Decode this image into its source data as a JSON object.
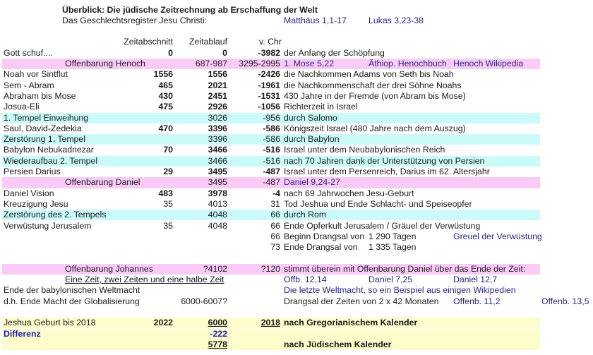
{
  "colors": {
    "pink": "#fbcbf7",
    "cyan": "#cbfafb",
    "yellow": "#fdfccb",
    "link": "#27277f",
    "differenz": "#1c1cc0"
  },
  "rows": [
    {
      "cells": [
        {
          "c": "T",
          "t": "Überblick: Die jüdische Zeitrechnung ab Erschaffung der Welt",
          "s": "b"
        }
      ]
    },
    {
      "cells": [
        {
          "c": "T",
          "t": "Das Geschlechtsregister Jesu Christi:"
        },
        {
          "c": "E",
          "t": "Matthäus 1,1-17",
          "s": "blue link"
        },
        {
          "c": "F",
          "t": "Lukas 3,23-38",
          "s": "blue link"
        }
      ]
    },
    {
      "cells": []
    },
    {
      "cells": [
        {
          "c": "B",
          "t": "Zeitabschnitt"
        },
        {
          "c": "C",
          "t": "Zeitablauf"
        },
        {
          "c": "DL",
          "t": "v. Chr"
        }
      ]
    },
    {
      "cells": [
        {
          "c": "A",
          "t": "Gott schuf...."
        },
        {
          "c": "B",
          "t": "0",
          "s": "b"
        },
        {
          "c": "C",
          "t": "0",
          "s": "b"
        },
        {
          "c": "D",
          "t": "-3982",
          "s": "b"
        },
        {
          "c": "E",
          "t": "der Anfang der Schöpfung"
        }
      ]
    },
    {
      "bg": "pink",
      "cells": [
        {
          "c": "AC",
          "t": "Offenbarung Henoch"
        },
        {
          "c": "C",
          "t": "687-987"
        },
        {
          "c": "D",
          "t": "3295-2995"
        },
        {
          "c": "E",
          "t": "1. Mose 5,22",
          "s": "blue link"
        },
        {
          "c": "F",
          "t": "Äthiop. Henochbuch",
          "s": "blue link"
        },
        {
          "c": "G",
          "t": "Henoch Wikipedia",
          "s": "blue link"
        }
      ]
    },
    {
      "cells": [
        {
          "c": "A",
          "t": "Noah vor Sintflut"
        },
        {
          "c": "B",
          "t": "1556",
          "s": "b"
        },
        {
          "c": "C",
          "t": "1556",
          "s": "b"
        },
        {
          "c": "D",
          "t": "-2426",
          "s": "b"
        },
        {
          "c": "E",
          "t": "die Nachkommen Adams von Seth bis Noah"
        }
      ]
    },
    {
      "cells": [
        {
          "c": "A",
          "t": "Sem - Abram"
        },
        {
          "c": "B",
          "t": "465",
          "s": "b"
        },
        {
          "c": "C",
          "t": "2021",
          "s": "b"
        },
        {
          "c": "D",
          "t": "-1961",
          "s": "b"
        },
        {
          "c": "E",
          "t": "die Nachkommenschaft der drei Söhne Noahs"
        }
      ]
    },
    {
      "cells": [
        {
          "c": "A",
          "t": "Abraham bis Mose"
        },
        {
          "c": "B",
          "t": "430",
          "s": "b"
        },
        {
          "c": "C",
          "t": "2451",
          "s": "b"
        },
        {
          "c": "D",
          "t": "-1531",
          "s": "b"
        },
        {
          "c": "E",
          "t": "430 Jahre in der Fremde (von Abram bis Mose)"
        }
      ]
    },
    {
      "cells": [
        {
          "c": "A",
          "t": "Josua-Eli"
        },
        {
          "c": "B",
          "t": "475",
          "s": "b"
        },
        {
          "c": "C",
          "t": "2926",
          "s": "b"
        },
        {
          "c": "D",
          "t": "-1056",
          "s": "b"
        },
        {
          "c": "E",
          "t": "Richterzeit in Israel"
        }
      ]
    },
    {
      "bg": "cyan",
      "cells": [
        {
          "c": "A",
          "t": "1. Tempel Einweihung"
        },
        {
          "c": "C",
          "t": "3026"
        },
        {
          "c": "D",
          "t": "-956"
        },
        {
          "c": "E",
          "t": "durch Salomo"
        }
      ]
    },
    {
      "cells": [
        {
          "c": "A",
          "t": "Saul, David-Zedekia"
        },
        {
          "c": "B",
          "t": "470",
          "s": "b"
        },
        {
          "c": "C",
          "t": "3396",
          "s": "b"
        },
        {
          "c": "D",
          "t": "-586",
          "s": "b"
        },
        {
          "c": "E",
          "t": "Königszeit Israel (480 Jahre nach dem Auszug)"
        }
      ]
    },
    {
      "bg": "cyan",
      "cells": [
        {
          "c": "A",
          "t": "Zerstörung 1. Tempel"
        },
        {
          "c": "C",
          "t": "3396"
        },
        {
          "c": "D",
          "t": "-586"
        },
        {
          "c": "E",
          "t": "durch Babylon"
        }
      ]
    },
    {
      "cells": [
        {
          "c": "A",
          "t": "Babylon Nebukadnezar"
        },
        {
          "c": "B",
          "t": "70",
          "s": "b"
        },
        {
          "c": "C",
          "t": "3466",
          "s": "b"
        },
        {
          "c": "D",
          "t": "-516",
          "s": "b"
        },
        {
          "c": "E",
          "t": "Israel unter dem Neubabylonischen Reich"
        }
      ]
    },
    {
      "bg": "cyan",
      "cells": [
        {
          "c": "A",
          "t": "Wiederaufbau 2. Tempel"
        },
        {
          "c": "C",
          "t": "3466"
        },
        {
          "c": "D",
          "t": "-516"
        },
        {
          "c": "E",
          "t": "nach 70 Jahren dank der Unterstützung von Persien"
        }
      ]
    },
    {
      "cells": [
        {
          "c": "A",
          "t": "Persien Darius"
        },
        {
          "c": "B",
          "t": "29",
          "s": "b"
        },
        {
          "c": "C",
          "t": "3495",
          "s": "b"
        },
        {
          "c": "D",
          "t": "-487",
          "s": "b"
        },
        {
          "c": "E",
          "t": "Israel unter dem Persenreich, Darius im 62. Altersjahr"
        }
      ]
    },
    {
      "bg": "pink",
      "cells": [
        {
          "c": "AC",
          "t": "Offenbarung Daniel"
        },
        {
          "c": "C",
          "t": "3495"
        },
        {
          "c": "D",
          "t": "-487"
        },
        {
          "c": "E",
          "t": "Daniel 9,24-27",
          "s": "blue link"
        }
      ]
    },
    {
      "cells": [
        {
          "c": "A",
          "t": "Daniel Vision"
        },
        {
          "c": "B",
          "t": "483",
          "s": "b"
        },
        {
          "c": "C",
          "t": "3978",
          "s": "b"
        },
        {
          "c": "D",
          "t": "-4",
          "s": "b"
        },
        {
          "c": "E",
          "t": "nach 69 Jahrwochen Jesu-Geburt"
        }
      ]
    },
    {
      "cells": [
        {
          "c": "A",
          "t": "Kreuzigung Jesu"
        },
        {
          "c": "B",
          "t": "35"
        },
        {
          "c": "C",
          "t": "4013"
        },
        {
          "c": "D",
          "t": "31"
        },
        {
          "c": "E",
          "t": "Tod Jeshua und Ende Schlacht- und Speiseopfer"
        }
      ]
    },
    {
      "bg": "cyan",
      "cells": [
        {
          "c": "A",
          "t": "Zerstörung des  2. Tempels"
        },
        {
          "c": "C",
          "t": "4048"
        },
        {
          "c": "D",
          "t": "66"
        },
        {
          "c": "E",
          "t": "durch Rom"
        }
      ]
    },
    {
      "cells": [
        {
          "c": "A",
          "t": "Verwüstung Jerusalem"
        },
        {
          "c": "B",
          "t": "35"
        },
        {
          "c": "C",
          "t": "4048"
        },
        {
          "c": "D",
          "t": "66"
        },
        {
          "c": "E",
          "t": "Ende Opferkult Jerusalem / Gräuel der Verwüstung"
        }
      ]
    },
    {
      "cells": [
        {
          "c": "D",
          "t": "66"
        },
        {
          "c": "E",
          "t": "Beginn Drangsal von"
        },
        {
          "c": "F",
          "t": "1 290 Tagen"
        },
        {
          "c": "G",
          "t": "Greuel der Verwüstung",
          "s": "blue link"
        }
      ]
    },
    {
      "cells": [
        {
          "c": "D",
          "t": "73"
        },
        {
          "c": "E",
          "t": "Ende Drangsal von"
        },
        {
          "c": "F",
          "t": "1 335 Tagen"
        }
      ]
    },
    {
      "cells": []
    },
    {
      "bg": "pink",
      "cells": [
        {
          "c": "AC",
          "t": "Offenbarung Johannes"
        },
        {
          "c": "C",
          "t": "?4102"
        },
        {
          "c": "D",
          "t": "?120"
        },
        {
          "c": "E",
          "t": "stimmt überein mit Offenbarung Daniel über das Ende der Zeit:"
        }
      ]
    },
    {
      "cells": [
        {
          "c": "AC",
          "t": "Eine Zeit, zwei Zeiten und eine halbe Zeit",
          "s": "u"
        },
        {
          "c": "E",
          "t": "Offb. 12,14",
          "s": "blue link"
        },
        {
          "c": "F",
          "t": "Daniel 7,25",
          "s": "blue link"
        },
        {
          "c": "G",
          "t": "Daniel 12,7",
          "s": "blue link"
        }
      ]
    },
    {
      "cells": [
        {
          "c": "A",
          "t": "Ende der babylonischen Weltmacht"
        },
        {
          "c": "E",
          "t": "Die letzte Weltmacht, so ein Beispiel aus einigen Wikipedien",
          "s": "blue link"
        }
      ]
    },
    {
      "cells": [
        {
          "c": "A",
          "t": "d.h. Ende Macht der Globalisierung"
        },
        {
          "c": "C",
          "t": "6000-6007?"
        },
        {
          "c": "E",
          "t": "Drangsal der Zeiten von 2 x 42 Monaten"
        },
        {
          "c": "G",
          "t": "Offenb. 11,2",
          "s": "blue link"
        },
        {
          "c": "H",
          "t": "Offenb. 13,5",
          "s": "blue link"
        }
      ]
    },
    {
      "cells": []
    },
    {
      "bg": "yellow",
      "cells": [
        {
          "c": "A",
          "t": "Jeshua Geburt bis 2018"
        },
        {
          "c": "B",
          "t": "2022",
          "s": "b"
        },
        {
          "c": "C",
          "t": "6000",
          "s": "b u"
        },
        {
          "c": "D",
          "t": "2018",
          "s": "b u"
        },
        {
          "c": "E",
          "t": "nach Gregorianischem Kalender",
          "s": "b"
        }
      ]
    },
    {
      "bg": "yellow",
      "cells": [
        {
          "c": "A",
          "t": "Differenz",
          "s": "bblue"
        },
        {
          "c": "C",
          "t": "-222",
          "s": "bblue"
        }
      ]
    },
    {
      "bg": "yellow",
      "cells": [
        {
          "c": "C",
          "t": "5778",
          "s": "b u"
        },
        {
          "c": "E",
          "t": "nach Jüdischem Kalender",
          "s": "b"
        }
      ]
    }
  ]
}
